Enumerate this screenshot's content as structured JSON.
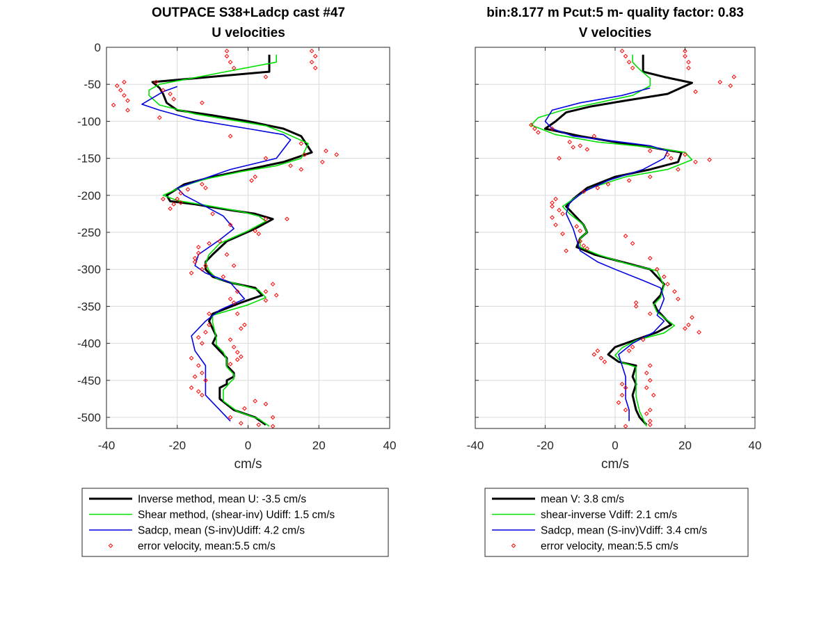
{
  "chart_data": [
    {
      "type": "line",
      "title": "OUTPACE S38+Ladcp cast #47",
      "subtitle": "U velocities",
      "xlabel": "cm/s",
      "ylabel": "",
      "xlim": [
        -40,
        40
      ],
      "ylim": [
        -515,
        0
      ],
      "xticks": [
        -40,
        -20,
        0,
        20,
        40
      ],
      "yticks": [
        0,
        -50,
        -100,
        -150,
        -200,
        -250,
        -300,
        -350,
        -400,
        -450,
        -500
      ],
      "grid": true,
      "legend_position": "below",
      "series": [
        {
          "name": "Inverse method, mean U:  -3.5 cm/s",
          "color": "#000000",
          "x": [
            6,
            6,
            -27,
            -25,
            -24,
            -23,
            -20,
            -10,
            0,
            10,
            15,
            18,
            10,
            0,
            -10,
            -18,
            -23,
            -22,
            -15,
            -5,
            2,
            7,
            2,
            -6,
            -10,
            -12,
            -12,
            -10,
            -5,
            2,
            4,
            -2,
            -10,
            -11,
            -9,
            -10,
            -8,
            -6,
            -6,
            -4,
            -4,
            -6,
            -6,
            -8,
            -8,
            -4,
            2,
            5
          ],
          "y": [
            -10,
            -33,
            -47,
            -55,
            -63,
            -75,
            -85,
            -92,
            -100,
            -110,
            -120,
            -142,
            -155,
            -165,
            -175,
            -185,
            -200,
            -208,
            -212,
            -220,
            -225,
            -232,
            -245,
            -262,
            -280,
            -290,
            -300,
            -310,
            -318,
            -325,
            -335,
            -345,
            -360,
            -370,
            -390,
            -400,
            -410,
            -420,
            -430,
            -440,
            -445,
            -450,
            -455,
            -460,
            -475,
            -490,
            -500,
            -510
          ]
        },
        {
          "name": "Shear method, (shear-inv)  Udiff:  1.5 cm/s",
          "color": "#00e000",
          "x": [
            8,
            8,
            -25,
            -28,
            -28,
            -25,
            -15,
            -5,
            5,
            10,
            17,
            15,
            8,
            -2,
            -12,
            -18,
            -24,
            -20,
            -10,
            -2,
            3,
            5,
            0,
            -8,
            -11,
            -12,
            -11,
            -9,
            -3,
            3,
            5,
            0,
            -10,
            -10,
            -9,
            -9,
            -7,
            -6,
            -6,
            -4,
            -4,
            -5,
            -6,
            -7,
            -7,
            -3,
            3,
            6
          ],
          "y": [
            -10,
            -20,
            -50,
            -58,
            -65,
            -78,
            -90,
            -98,
            -106,
            -115,
            -130,
            -150,
            -160,
            -168,
            -178,
            -187,
            -200,
            -207,
            -215,
            -222,
            -228,
            -235,
            -248,
            -265,
            -280,
            -292,
            -302,
            -312,
            -320,
            -328,
            -338,
            -348,
            -362,
            -372,
            -392,
            -402,
            -412,
            -422,
            -432,
            -442,
            -448,
            -452,
            -458,
            -463,
            -478,
            -492,
            -502,
            -512
          ]
        },
        {
          "name": "Sadcp, mean (S-inv)Udiff: 4.2 cm/s",
          "color": "#0000e0",
          "x": [
            -20,
            -24,
            -30,
            -25,
            -15,
            0,
            10,
            12,
            8,
            -5,
            -14,
            -20,
            -18,
            -12,
            -7,
            -4,
            -8,
            -14,
            -15,
            -12,
            -5,
            -1,
            -8,
            -12,
            -16,
            -15,
            -12,
            -12,
            -12,
            -5
          ],
          "y": [
            -53,
            -60,
            -77,
            -85,
            -98,
            -110,
            -118,
            -125,
            -150,
            -165,
            -180,
            -190,
            -200,
            -215,
            -228,
            -245,
            -260,
            -280,
            -295,
            -305,
            -318,
            -340,
            -355,
            -370,
            -390,
            -410,
            -430,
            -450,
            -470,
            -505
          ]
        }
      ],
      "scatter": {
        "name": "error velocity, mean:5.5 cm/s",
        "color": "#ff0000",
        "x": [
          -6,
          -6,
          -5,
          -4,
          5,
          18,
          19,
          18,
          19,
          -35,
          -37,
          -36,
          -35,
          -34,
          -38,
          -34,
          -25,
          -24,
          -22,
          -21,
          -26,
          -13,
          -5,
          5,
          15,
          22,
          16,
          21,
          25,
          12,
          15,
          2,
          1,
          -13,
          -17,
          -19,
          -20,
          -19,
          -21,
          -22,
          -24,
          -12,
          -10,
          -5,
          2,
          3,
          5,
          11,
          -6,
          -8,
          -11,
          -14,
          -14,
          -15,
          -15,
          -12,
          -13,
          -16,
          -4,
          -7,
          -3,
          -5,
          -4,
          5,
          7,
          8,
          5,
          -3,
          -1,
          -2,
          -11,
          -11,
          -12,
          -14,
          -13,
          -16,
          -5,
          -4,
          -3,
          -2,
          -3,
          -5,
          -14,
          -13,
          -15,
          -12,
          -16,
          -14,
          -13,
          -5,
          -2,
          3,
          7,
          7,
          5,
          2,
          -1
        ],
        "y": [
          -5,
          -12,
          -20,
          -28,
          -40,
          -5,
          -12,
          -20,
          -28,
          -47,
          -52,
          -58,
          -65,
          -72,
          -78,
          -85,
          -95,
          -58,
          -63,
          -70,
          -47,
          -75,
          -120,
          -150,
          -130,
          -140,
          -145,
          -155,
          -145,
          -160,
          -165,
          -175,
          -180,
          -185,
          -192,
          -197,
          -205,
          -210,
          -212,
          -218,
          -205,
          -190,
          -225,
          -240,
          -248,
          -252,
          -232,
          -232,
          -280,
          -262,
          -265,
          -270,
          -278,
          -285,
          -290,
          -295,
          -300,
          -305,
          -295,
          -310,
          -330,
          -340,
          -345,
          -342,
          -320,
          -335,
          -330,
          -360,
          -375,
          -380,
          -360,
          -375,
          -385,
          -392,
          -400,
          -420,
          -395,
          -405,
          -412,
          -418,
          -422,
          -428,
          -430,
          -440,
          -445,
          -450,
          -460,
          -465,
          -470,
          -500,
          -508,
          -510,
          -500,
          -512,
          -482,
          -478,
          -488
        ]
      }
    },
    {
      "type": "line",
      "title": "bin:8.177 m  Pcut:5 m- quality factor:  0.83",
      "subtitle": "V velocities",
      "xlabel": "cm/s",
      "ylabel": "",
      "xlim": [
        -40,
        40
      ],
      "ylim": [
        -515,
        0
      ],
      "xticks": [
        -40,
        -20,
        0,
        20,
        40
      ],
      "yticks": [
        0,
        -50,
        -100,
        -150,
        -200,
        -250,
        -300,
        -350,
        -400,
        -450,
        -500
      ],
      "grid": true,
      "legend_position": "below",
      "series": [
        {
          "name": "mean V:  3.8 cm/s",
          "color": "#000000",
          "x": [
            8,
            8,
            14,
            22,
            15,
            3,
            -7,
            -14,
            -17,
            -20,
            -10,
            0,
            10,
            19,
            18,
            10,
            0,
            -8,
            -12,
            -14,
            -12,
            -9,
            -8,
            -10,
            -11,
            -6,
            2,
            10,
            12,
            14,
            13,
            11,
            12,
            16,
            12,
            6,
            0,
            -2,
            1,
            6,
            5,
            6,
            5,
            6,
            7,
            9
          ],
          "y": [
            -10,
            -33,
            -40,
            -48,
            -63,
            -72,
            -80,
            -88,
            -100,
            -110,
            -120,
            -128,
            -135,
            -142,
            -155,
            -165,
            -175,
            -190,
            -205,
            -215,
            -225,
            -240,
            -250,
            -258,
            -270,
            -280,
            -290,
            -300,
            -310,
            -320,
            -335,
            -345,
            -355,
            -375,
            -385,
            -395,
            -405,
            -415,
            -425,
            -430,
            -445,
            -455,
            -470,
            -490,
            -500,
            -510
          ]
        },
        {
          "name": "shear-inverse Vdiff:  2.1 cm/s",
          "color": "#00e000",
          "x": [
            5,
            5,
            7,
            10,
            10,
            5,
            -5,
            -15,
            -22,
            -24,
            -17,
            -5,
            10,
            20,
            22,
            15,
            3,
            -7,
            -12,
            -15,
            -13,
            -9,
            -8,
            -10,
            -10,
            -5,
            3,
            12,
            13,
            14,
            13,
            11,
            12,
            17,
            14,
            6,
            2,
            0,
            2,
            6,
            6,
            6,
            6,
            7,
            8,
            9
          ],
          "y": [
            -10,
            -20,
            -30,
            -42,
            -52,
            -65,
            -75,
            -85,
            -95,
            -105,
            -118,
            -128,
            -135,
            -142,
            -152,
            -165,
            -175,
            -190,
            -205,
            -215,
            -225,
            -240,
            -250,
            -258,
            -270,
            -280,
            -292,
            -302,
            -312,
            -322,
            -338,
            -348,
            -358,
            -376,
            -386,
            -396,
            -406,
            -416,
            -426,
            -432,
            -447,
            -457,
            -472,
            -492,
            -502,
            -512
          ]
        },
        {
          "name": "Sadcp, mean (S-inv)Vdiff: 3.4 cm/s",
          "color": "#0000e0",
          "x": [
            10,
            2,
            -10,
            -18,
            -20,
            -18,
            -12,
            0,
            10,
            15,
            14,
            8,
            -2,
            -9,
            -13,
            -14,
            -12,
            -11,
            -10,
            -5,
            0,
            8,
            13,
            14,
            13,
            12,
            14,
            11,
            5,
            1,
            2,
            3,
            3,
            3,
            4,
            4
          ],
          "y": [
            -55,
            -65,
            -75,
            -85,
            -100,
            -110,
            -120,
            -127,
            -133,
            -140,
            -150,
            -165,
            -180,
            -195,
            -210,
            -225,
            -245,
            -260,
            -275,
            -290,
            -300,
            -315,
            -325,
            -340,
            -352,
            -362,
            -370,
            -385,
            -400,
            -415,
            -430,
            -445,
            -460,
            -475,
            -490,
            -505
          ]
        }
      ],
      "scatter": {
        "name": "error velocity, mean:5.5 cm/s",
        "color": "#ff0000",
        "x": [
          2,
          3,
          4,
          5,
          20,
          20,
          21,
          21,
          30,
          33,
          34,
          23,
          -6,
          -12,
          -16,
          -18,
          -24,
          -23,
          -22,
          -13,
          -10,
          -8,
          10,
          15,
          16,
          23,
          20,
          27,
          18,
          10,
          4,
          -2,
          -5,
          -9,
          -17,
          -18,
          -18,
          -16,
          -15,
          -18,
          -17,
          -11,
          -10,
          -15,
          -10,
          -9,
          -8,
          -14,
          3,
          5,
          10,
          12,
          14,
          15,
          17,
          18,
          6,
          6,
          10,
          22,
          21,
          20,
          24,
          8,
          5,
          4,
          -5,
          -6,
          -4,
          -3,
          10,
          9,
          10,
          9,
          2,
          2,
          1,
          3,
          9,
          10,
          10,
          10,
          11,
          3,
          3
        ],
        "y": [
          -5,
          -12,
          -20,
          -28,
          -5,
          -12,
          -20,
          -28,
          -47,
          -52,
          -40,
          -60,
          -120,
          -135,
          -150,
          -110,
          -105,
          -110,
          -115,
          -128,
          -133,
          -138,
          -140,
          -145,
          -150,
          -155,
          -145,
          -152,
          -165,
          -175,
          -180,
          -185,
          -190,
          -195,
          -205,
          -210,
          -215,
          -220,
          -225,
          -230,
          -240,
          -242,
          -248,
          -252,
          -262,
          -268,
          -272,
          -275,
          -255,
          -265,
          -285,
          -300,
          -310,
          -320,
          -330,
          -340,
          -345,
          -350,
          -360,
          -365,
          -375,
          -380,
          -385,
          -395,
          -405,
          -410,
          -410,
          -415,
          -420,
          -425,
          -430,
          -440,
          -450,
          -460,
          -455,
          -470,
          -480,
          -490,
          -495,
          -505,
          -510,
          -490,
          -470,
          -460,
          -512
        ]
      }
    }
  ]
}
